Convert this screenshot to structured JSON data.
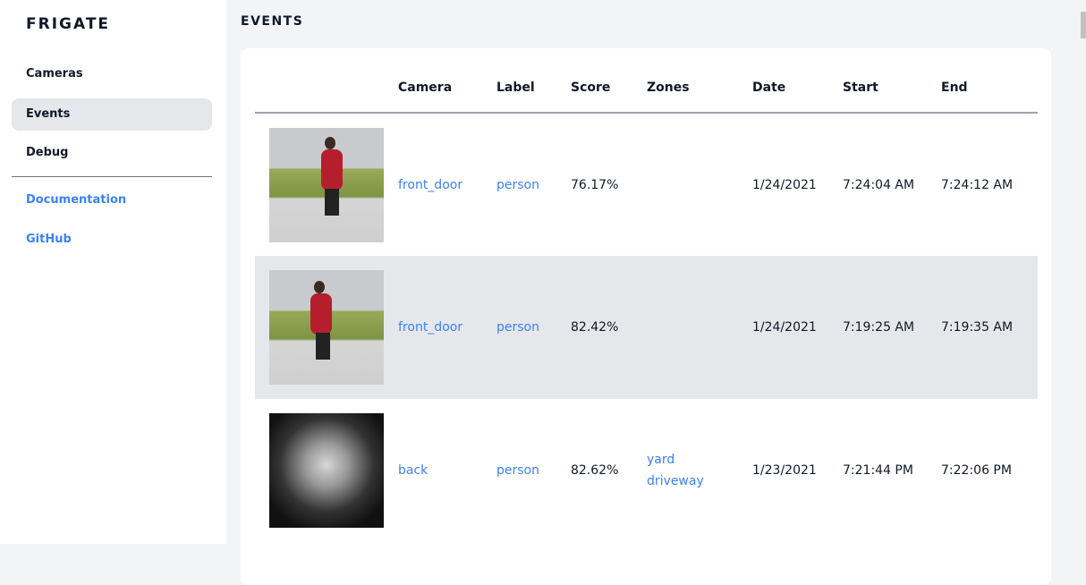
{
  "sidebar": {
    "brand": "FRIGATE",
    "items": [
      {
        "label": "Cameras"
      },
      {
        "label": "Events"
      },
      {
        "label": "Debug"
      }
    ],
    "links": [
      {
        "label": "Documentation"
      },
      {
        "label": "GitHub"
      }
    ]
  },
  "page": {
    "title": "EVENTS"
  },
  "table": {
    "headers": [
      "",
      "Camera",
      "Label",
      "Score",
      "Zones",
      "Date",
      "Start",
      "End"
    ],
    "rows": [
      {
        "camera": "front_door",
        "label": "person",
        "score": "76.17%",
        "zones": [
          "",
          ""
        ],
        "date": "1/24/2021",
        "start": "7:24:04 AM",
        "end": "7:24:12 AM"
      },
      {
        "camera": "front_door",
        "label": "person",
        "score": "82.42%",
        "zones": [
          "",
          ""
        ],
        "date": "1/24/2021",
        "start": "7:19:25 AM",
        "end": "7:19:35 AM"
      },
      {
        "camera": "back",
        "label": "person",
        "score": "82.62%",
        "zones": [
          "yard",
          "driveway"
        ],
        "date": "1/23/2021",
        "start": "7:21:44 PM",
        "end": "7:22:06 PM"
      }
    ]
  },
  "colors": {
    "accent": "#3b82f6",
    "active_bg": "#e5e7eb"
  }
}
